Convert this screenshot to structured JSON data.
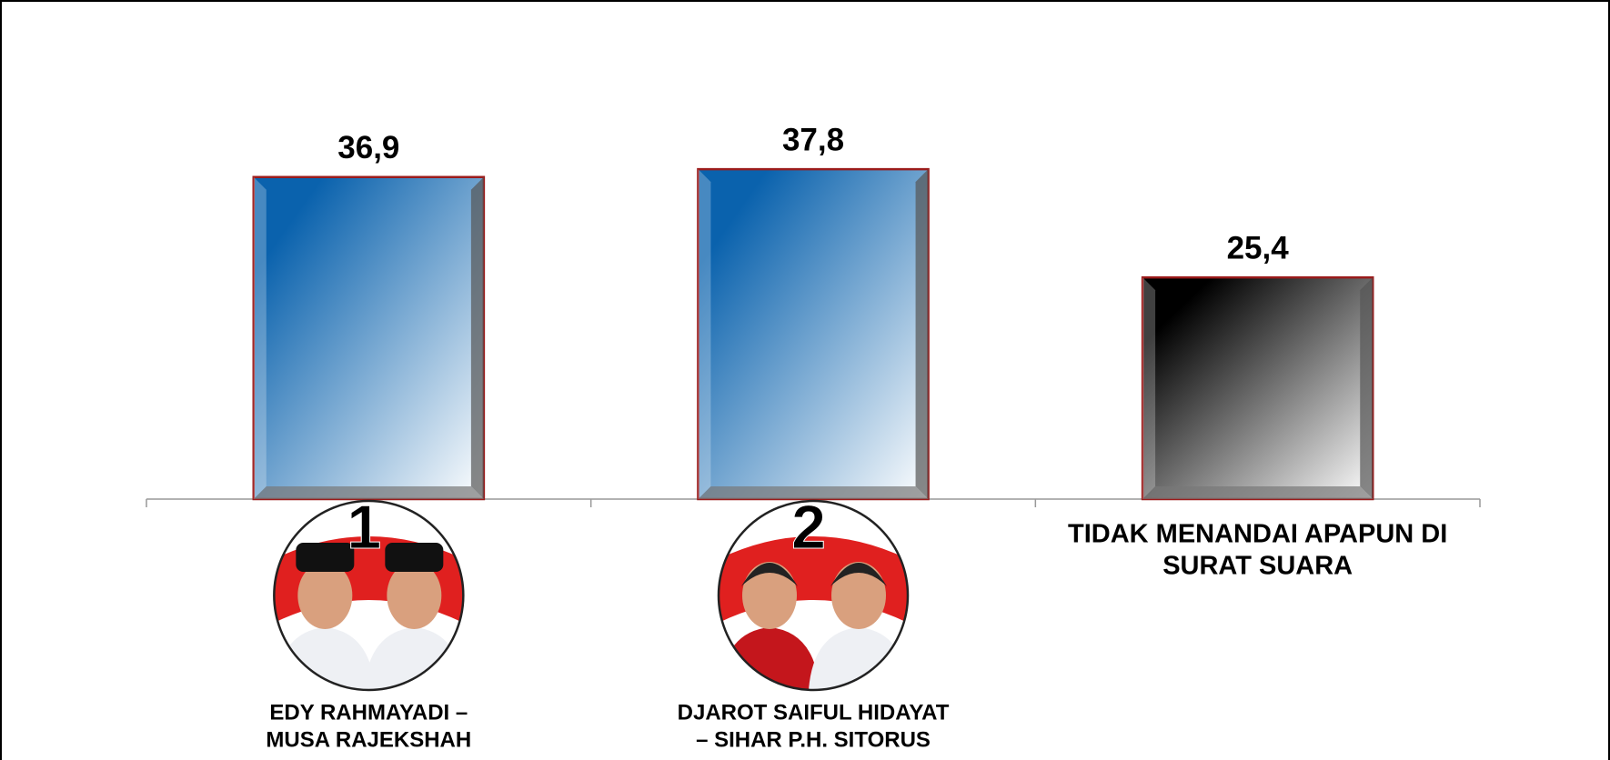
{
  "chart_data": {
    "type": "bar",
    "categories": [
      [
        "EDY RAHMAYADI –",
        "MUSA RAJEKSHAH"
      ],
      [
        "DJAROT SAIFUL HIDAYAT",
        "– SIHAR P.H. SITORUS"
      ],
      [
        "TIDAK MENANDAI APAPUN DI",
        "SURAT SUARA"
      ]
    ],
    "badges": [
      "1",
      "2"
    ],
    "values": [
      36.9,
      37.8,
      25.4
    ],
    "value_labels": [
      "36,9",
      "37,8",
      "25,4"
    ],
    "colors": [
      "#0a62ad",
      "#0a62ad",
      "#000000"
    ],
    "ylim": [
      0,
      40
    ]
  }
}
